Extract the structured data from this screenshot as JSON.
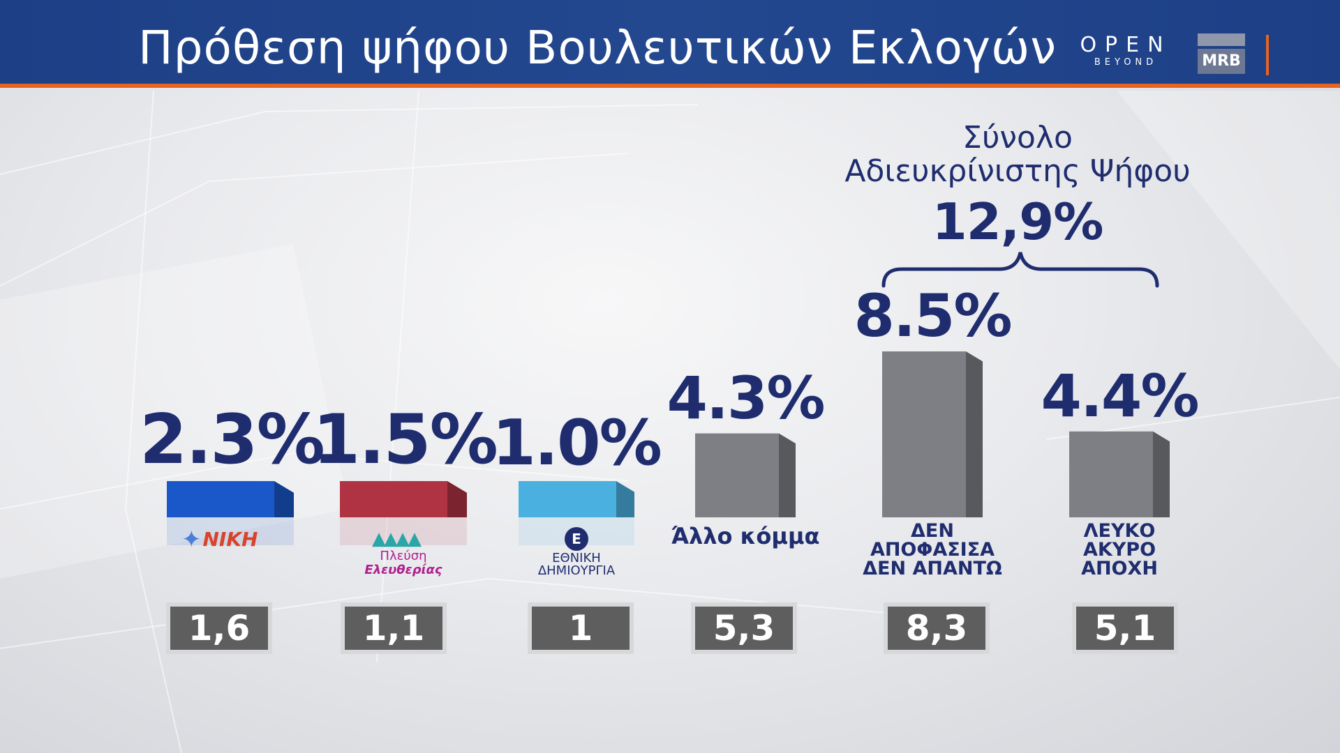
{
  "header": {
    "title": "Πρόθεση ψήφου Βουλευτικών Εκλογών",
    "channel_logo_main": "OPEN",
    "channel_logo_sub": "BEYOND",
    "pollster_logo": "MRB"
  },
  "colors": {
    "header_bg": "#1d3f86",
    "accent": "#e8631f",
    "label_text": "#1f2d6f",
    "niki": "#1a57c9",
    "plefsi": "#b03343",
    "ethniki": "#4ab0e0",
    "grey_bar": "#7d7f85"
  },
  "chart_data": {
    "type": "bar",
    "categories": [
      "ΝΙΚΗ",
      "Πλεύση Ελευθερίας",
      "ΕΘΝΙΚΗ ΔΗΜΙΟΥΡΓΙΑ",
      "Άλλο κόμμα",
      "ΔΕΝ ΑΠΟΦΑΣΙΣΑ ΔΕΝ ΑΠΑΝΤΩ",
      "ΛΕΥΚΟ ΑΚΥΡΟ ΑΠΟΧΗ"
    ],
    "value_labels": [
      "2.3%",
      "1.5%",
      "1.0%",
      "4.3%",
      "8.5%",
      "4.4%"
    ],
    "values": [
      2.3,
      1.5,
      1.0,
      4.3,
      8.5,
      4.4
    ],
    "previous_values": [
      "1,6",
      "1,1",
      "1",
      "5,3",
      "8,3",
      "5,1"
    ],
    "category_label_lines": [
      [
        "ΝΙΚΗ"
      ],
      [
        "Πλεύση",
        "Ελευθερίας"
      ],
      [
        "ΕΘΝΙΚΗ",
        "ΔΗΜΙΟΥΡΓΙΑ"
      ],
      [
        "Άλλο κόμμα"
      ],
      [
        "ΔΕΝ",
        "ΑΠΟΦΑΣΙΣΑ",
        "ΔΕΝ ΑΠΑΝΤΩ"
      ],
      [
        "ΛΕΥΚΟ",
        "ΑΚΥΡΟ",
        "ΑΠΟΧΗ"
      ]
    ],
    "bar_colors": [
      "#1a57c9",
      "#b03343",
      "#4ab0e0",
      "#7d7f85",
      "#7d7f85",
      "#7d7f85"
    ],
    "ylabel": "",
    "xlabel": "",
    "grid": false,
    "total_undecided": {
      "title_line1": "Σύνολο",
      "title_line2": "Αδιευκρίνιστης Ψήφου",
      "value": "12,9%",
      "covers": [
        4,
        5
      ]
    }
  }
}
